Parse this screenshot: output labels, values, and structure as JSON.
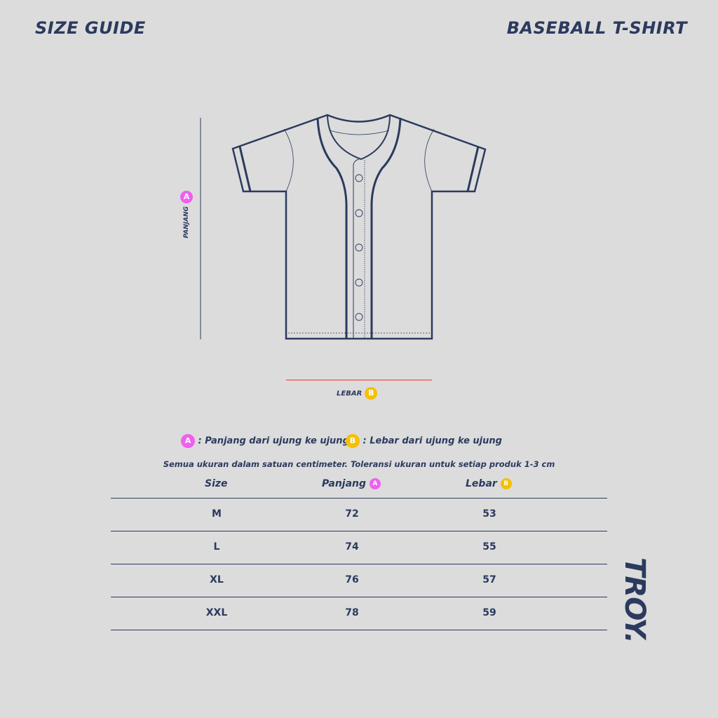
{
  "header": {
    "left_title": "SIZE GUIDE",
    "right_title": "BASEBALL T-SHIRT"
  },
  "diagram": {
    "length_label": "PANJANG",
    "length_badge": "A",
    "width_label": "LEBAR",
    "width_badge": "B"
  },
  "legend": [
    {
      "badge": "A",
      "text": ": Panjang dari ujung ke ujung"
    },
    {
      "badge": "B",
      "text": ": Lebar dari ujung ke ujung"
    }
  ],
  "note": "Semua ukuran dalam satuan centimeter. Toleransi ukuran untuk setiap produk 1-3 cm",
  "table": {
    "headers": [
      {
        "label": "Size"
      },
      {
        "label": "Panjang",
        "badge": "A"
      },
      {
        "label": "Lebar",
        "badge": "B"
      }
    ],
    "rows": [
      {
        "size": "M",
        "panjang": "72",
        "lebar": "53"
      },
      {
        "size": "L",
        "panjang": "74",
        "lebar": "55"
      },
      {
        "size": "XL",
        "panjang": "76",
        "lebar": "57"
      },
      {
        "size": "XXL",
        "panjang": "78",
        "lebar": "59"
      }
    ]
  },
  "brand": "TROY.",
  "colors": {
    "background": "#dcdcdc",
    "navy": "#2b3a5e",
    "badge_a": "#f05ff0",
    "badge_b": "#f5c000",
    "width_line": "#e8685a"
  }
}
